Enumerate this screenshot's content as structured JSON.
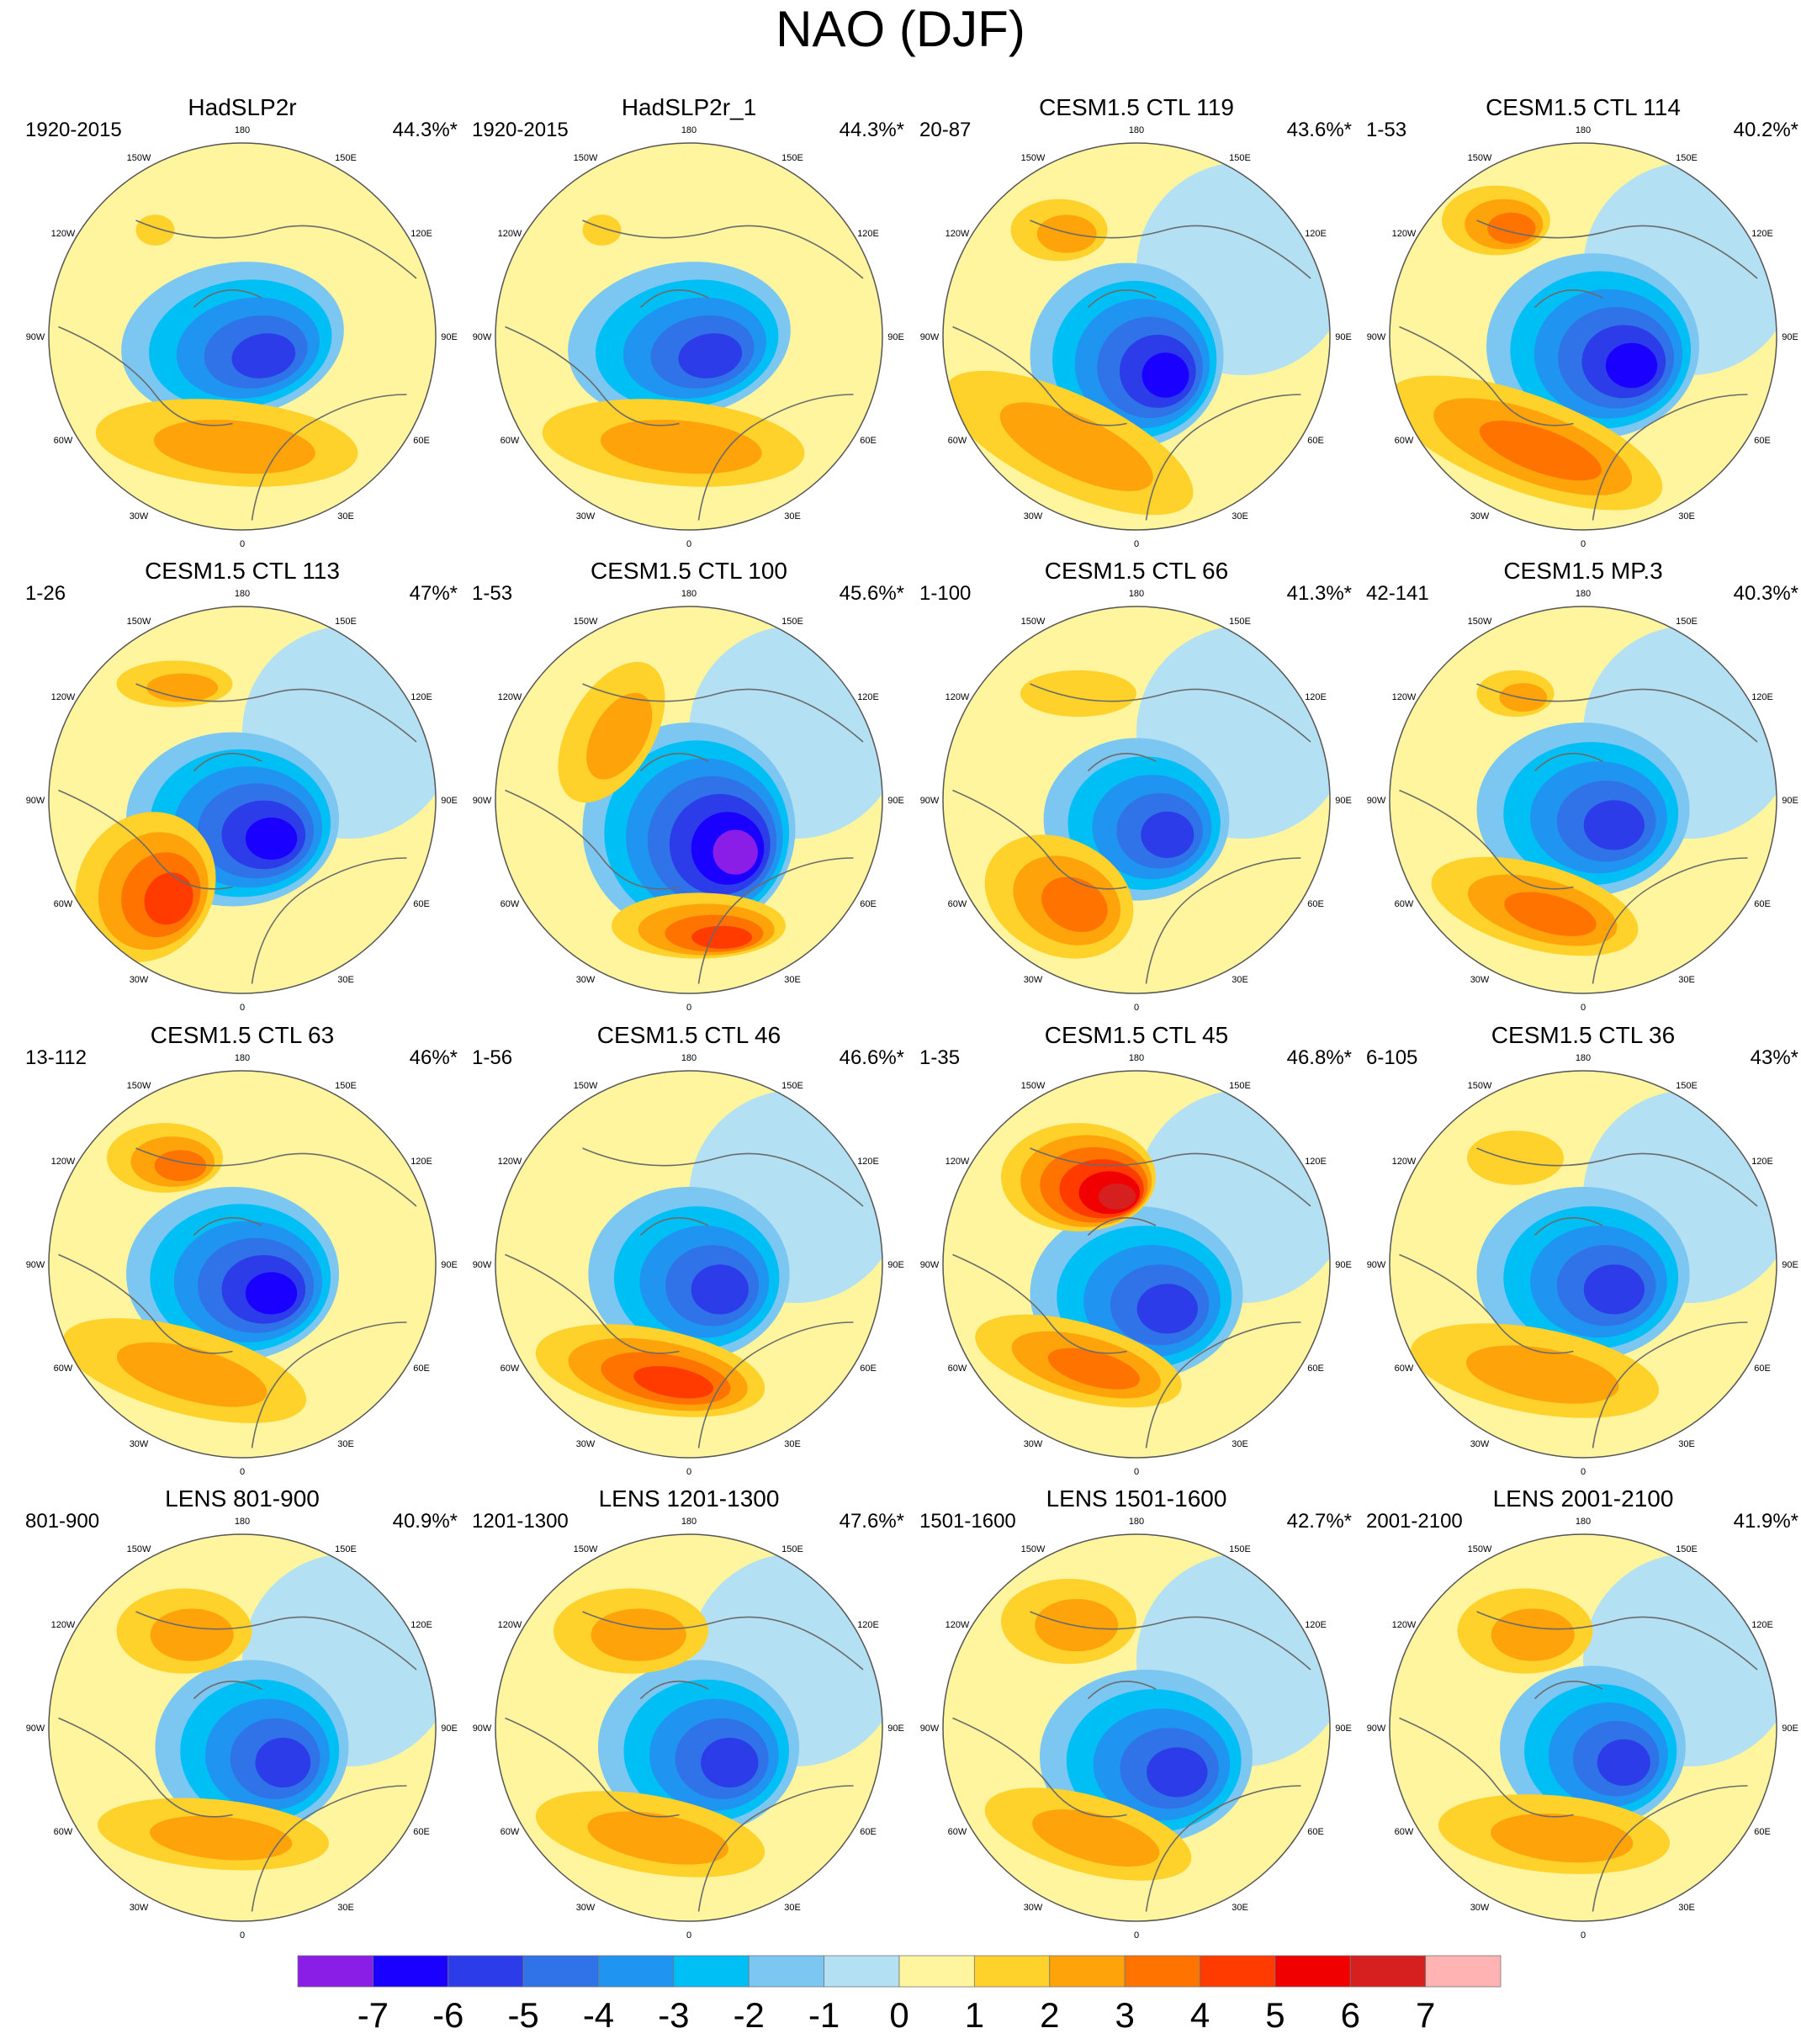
{
  "chart_data": {
    "type": "polar contour map panels",
    "title": "NAO (DJF)",
    "lon_labels": [
      "180",
      "150E",
      "120E",
      "90E",
      "60E",
      "30E",
      "0",
      "30W",
      "60W",
      "90W",
      "120W",
      "150W"
    ],
    "panels": [
      {
        "title": "HadSLP2r",
        "period": "1920-2015",
        "variance": "44.3%*"
      },
      {
        "title": "HadSLP2r_1",
        "period": "1920-2015",
        "variance": "44.3%*"
      },
      {
        "title": "CESM1.5 CTL 119",
        "period": "20-87",
        "variance": "43.6%*"
      },
      {
        "title": "CESM1.5 CTL 114",
        "period": "1-53",
        "variance": "40.2%*"
      },
      {
        "title": "CESM1.5 CTL 113",
        "period": "1-26",
        "variance": "47%*"
      },
      {
        "title": "CESM1.5 CTL 100",
        "period": "1-53",
        "variance": "45.6%*"
      },
      {
        "title": "CESM1.5 CTL 66",
        "period": "1-100",
        "variance": "41.3%*"
      },
      {
        "title": "CESM1.5 MP.3",
        "period": "42-141",
        "variance": "40.3%*"
      },
      {
        "title": "CESM1.5 CTL 63",
        "period": "13-112",
        "variance": "46%*"
      },
      {
        "title": "CESM1.5 CTL 46",
        "period": "1-56",
        "variance": "46.6%*"
      },
      {
        "title": "CESM1.5 CTL 45",
        "period": "1-35",
        "variance": "46.8%*"
      },
      {
        "title": "CESM1.5 CTL 36",
        "period": "6-105",
        "variance": "43%*"
      },
      {
        "title": "LENS 801-900",
        "period": "801-900",
        "variance": "40.9%*"
      },
      {
        "title": "LENS 1201-1300",
        "period": "1201-1300",
        "variance": "47.6%*"
      },
      {
        "title": "LENS 1501-1600",
        "period": "1501-1600",
        "variance": "42.7%*"
      },
      {
        "title": "LENS 2001-2100",
        "period": "2001-2100",
        "variance": "41.9%*"
      }
    ],
    "colorbar": {
      "ticks": [
        "-7",
        "-6",
        "-5",
        "-4",
        "-3",
        "-2",
        "-1",
        "0",
        "1",
        "2",
        "3",
        "4",
        "5",
        "6",
        "7"
      ],
      "colors": [
        "#8a1de6",
        "#1a00ff",
        "#2b3ce8",
        "#3072e8",
        "#1f94f0",
        "#00bff5",
        "#7cc7f2",
        "#b3e0f2",
        "#fff59e",
        "#ffd12b",
        "#ffa30a",
        "#ff7300",
        "#ff3b00",
        "#f00000",
        "#d61f1f",
        "#ffb3b3"
      ]
    }
  }
}
